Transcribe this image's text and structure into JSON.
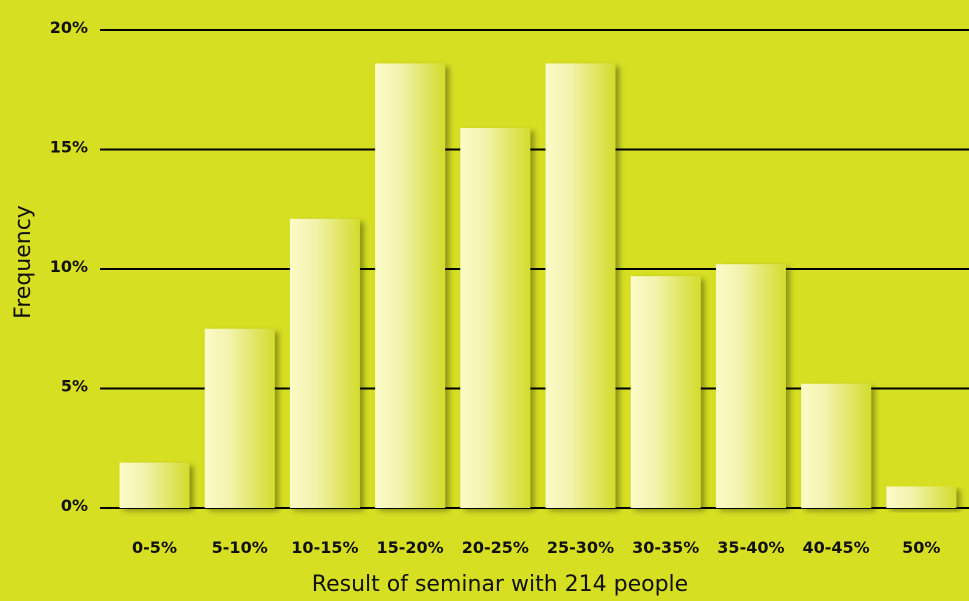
{
  "chart_data": {
    "type": "bar",
    "title": "",
    "xlabel": "Result of seminar with 214 people",
    "ylabel": "Frequency",
    "categories": [
      "0-5%",
      "5-10%",
      "10-15%",
      "15-20%",
      "20-25%",
      "25-30%",
      "30-35%",
      "35-40%",
      "40-45%",
      "50%"
    ],
    "values": [
      1.9,
      7.5,
      12.1,
      18.6,
      15.9,
      18.6,
      9.7,
      10.2,
      5.2,
      0.9
    ],
    "ylim": [
      0,
      20
    ],
    "yticks": [
      {
        "value": 0,
        "label": "0%"
      },
      {
        "value": 5,
        "label": "5%"
      },
      {
        "value": 10,
        "label": "10%"
      },
      {
        "value": 15,
        "label": "15%"
      },
      {
        "value": 20,
        "label": "20%"
      }
    ],
    "grid": true,
    "legend": "none",
    "colors": {
      "background": "#d6df22",
      "bar_light": "#f5f5b4",
      "bar_dark": "#d3dc2c",
      "grid": "#000000",
      "text": "#111111"
    }
  }
}
